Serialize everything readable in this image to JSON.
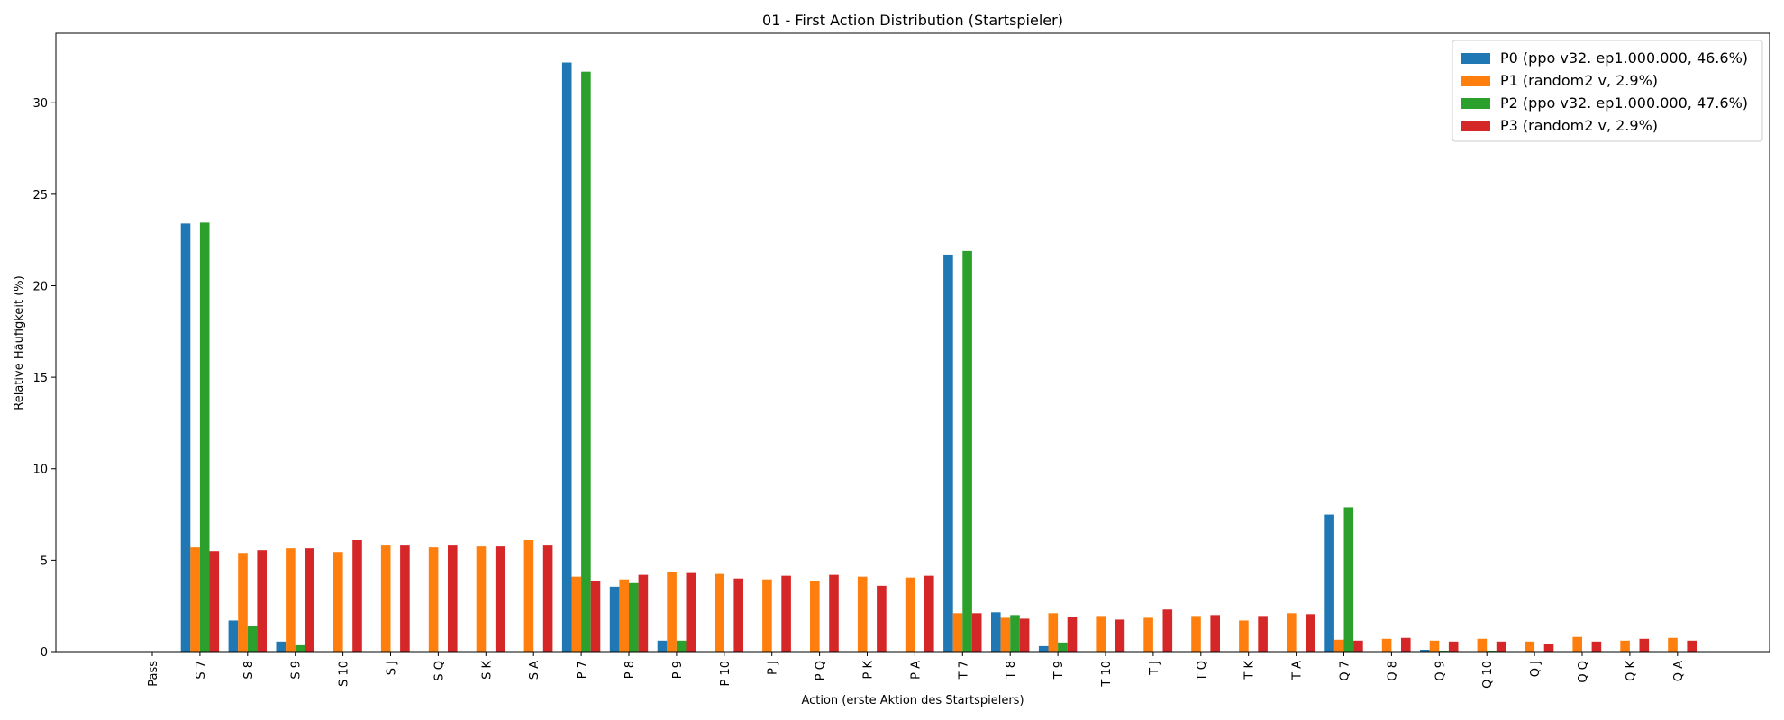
{
  "chart_data": {
    "type": "bar",
    "title": "01 - First Action Distribution (Startspieler)",
    "xlabel": "Action (erste Aktion des Startspielers)",
    "ylabel": "Relative Häufigkeit (%)",
    "ylim": [
      0,
      33.8
    ],
    "yticks": [
      0,
      5,
      10,
      15,
      20,
      25,
      30
    ],
    "grid": false,
    "legend_position": "top-right",
    "categories": [
      "Pass",
      "S 7",
      "S 8",
      "S 9",
      "S 10",
      "S J",
      "S Q",
      "S K",
      "S A",
      "P 7",
      "P 8",
      "P 9",
      "P 10",
      "P J",
      "P Q",
      "P K",
      "P A",
      "T 7",
      "T 8",
      "T 9",
      "T 10",
      "T J",
      "T Q",
      "T K",
      "T A",
      "Q 7",
      "Q 8",
      "Q 9",
      "Q 10",
      "Q J",
      "Q Q",
      "Q K",
      "Q A"
    ],
    "series": [
      {
        "name": "P0 (ppo v32. ep1.000.000, 46.6%)",
        "color": "#1f77b4",
        "values": [
          0,
          23.4,
          1.7,
          0.55,
          0,
          0,
          0,
          0,
          0,
          32.2,
          3.55,
          0.6,
          0,
          0,
          0,
          0,
          0,
          21.7,
          2.15,
          0.3,
          0,
          0,
          0,
          0,
          0,
          7.5,
          0,
          0.1,
          0,
          0,
          0,
          0,
          0
        ]
      },
      {
        "name": "P1 (random2 v, 2.9%)",
        "color": "#ff7f0e",
        "values": [
          0,
          5.7,
          5.4,
          5.65,
          5.45,
          5.8,
          5.7,
          5.75,
          6.1,
          4.1,
          3.95,
          4.35,
          4.25,
          3.95,
          3.85,
          4.1,
          4.05,
          2.1,
          1.85,
          2.1,
          1.95,
          1.85,
          1.95,
          1.7,
          2.1,
          0.65,
          0.7,
          0.6,
          0.7,
          0.55,
          0.8,
          0.6,
          0.75
        ]
      },
      {
        "name": "P2 (ppo v32. ep1.000.000, 47.6%)",
        "color": "#2ca02c",
        "values": [
          0,
          23.45,
          1.4,
          0.35,
          0,
          0,
          0,
          0,
          0,
          31.7,
          3.75,
          0.6,
          0,
          0,
          0,
          0,
          0,
          21.9,
          2.0,
          0.5,
          0,
          0,
          0,
          0,
          0,
          7.9,
          0,
          0.05,
          0.05,
          0,
          0,
          0,
          0
        ]
      },
      {
        "name": "P3 (random2 v, 2.9%)",
        "color": "#d62728",
        "values": [
          0,
          5.5,
          5.55,
          5.65,
          6.1,
          5.8,
          5.8,
          5.75,
          5.8,
          3.85,
          4.2,
          4.3,
          4.0,
          4.15,
          4.2,
          3.6,
          4.15,
          2.1,
          1.8,
          1.9,
          1.75,
          2.3,
          2.0,
          1.95,
          2.05,
          0.6,
          0.75,
          0.55,
          0.55,
          0.4,
          0.55,
          0.7,
          0.6
        ]
      }
    ]
  }
}
